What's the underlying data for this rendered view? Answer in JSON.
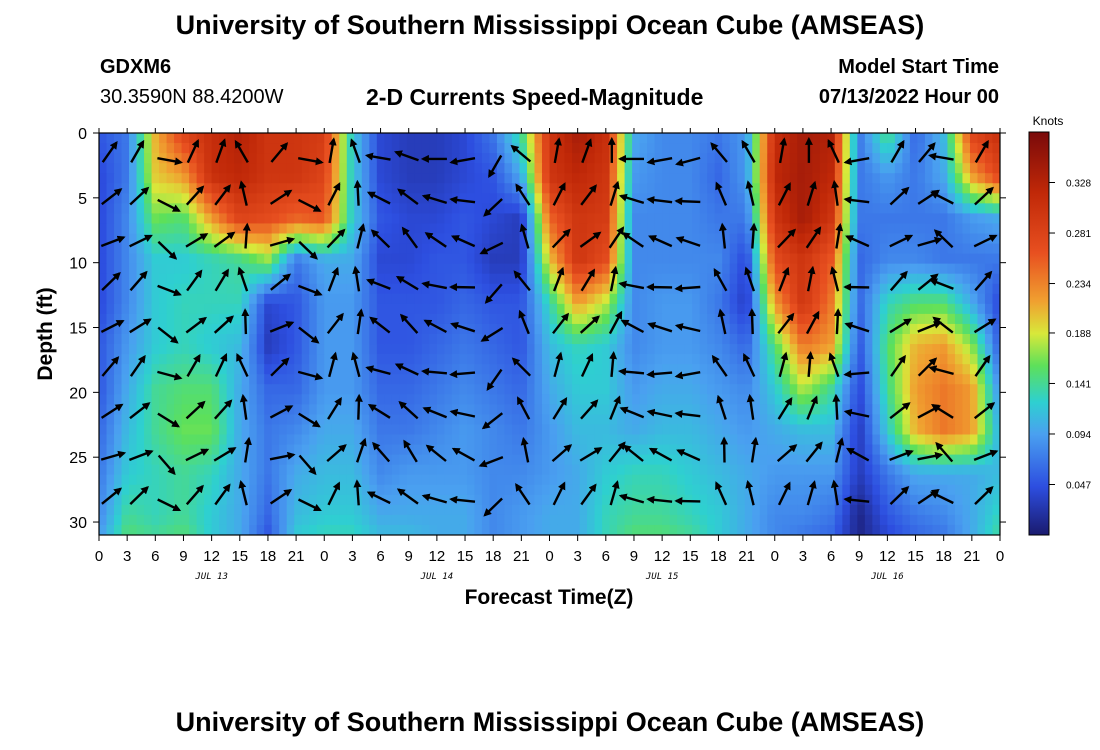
{
  "header": {
    "title": "University of Southern Mississippi Ocean Cube (AMSEAS)",
    "station_id": "GDXM6",
    "station_coords": "30.3590N  88.4200W",
    "plot_title": "2-D Currents Speed-Magnitude",
    "start_label": "Model Start Time",
    "start_value": "07/13/2022 Hour 00"
  },
  "footer": {
    "title": "University of Southern Mississippi Ocean Cube (AMSEAS)"
  },
  "chart_data": {
    "type": "heatmap",
    "title": "2-D Currents Speed-Magnitude",
    "xlabel": "Forecast Time(Z)",
    "ylabel": "Depth (ft)",
    "xlim": [
      0,
      96
    ],
    "ylim": [
      31,
      0
    ],
    "x_tick_labels": [
      "0",
      "3",
      "6",
      "9",
      "12",
      "15",
      "18",
      "21",
      "0",
      "3",
      "6",
      "9",
      "12",
      "15",
      "18",
      "21",
      "0",
      "3",
      "6",
      "9",
      "12",
      "15",
      "18",
      "21",
      "0",
      "3",
      "6",
      "9",
      "12",
      "15",
      "18",
      "21",
      "0"
    ],
    "y_ticks": [
      0,
      5,
      10,
      15,
      20,
      25,
      30
    ],
    "date_labels": [
      {
        "label": "JUL 13",
        "hour": 12
      },
      {
        "label": "JUL 14",
        "hour": 36
      },
      {
        "label": "JUL 15",
        "hour": 60
      },
      {
        "label": "JUL 16",
        "hour": 84
      }
    ],
    "colorbar": {
      "unit": "Knots",
      "range": [
        0.0,
        0.375
      ],
      "ticks": [
        "0.328",
        "0.281",
        "0.234",
        "0.188",
        "0.141",
        "0.094",
        "0.047"
      ],
      "tick_values": [
        0.328,
        0.281,
        0.234,
        0.188,
        0.141,
        0.094,
        0.047
      ]
    },
    "depth_levels_ft": [
      0,
      3.3,
      6.6,
      9.8,
      13.1,
      16.4,
      19.7,
      23.0,
      26.2,
      29.5,
      31.0
    ],
    "hours": [
      0,
      3,
      6,
      9,
      12,
      15,
      18,
      21,
      24,
      27,
      30,
      33,
      36,
      39,
      42,
      45,
      48,
      51,
      54,
      57,
      60,
      63,
      66,
      69,
      72,
      75,
      78,
      81,
      84,
      87,
      90,
      93,
      96
    ],
    "speed_knots": [
      [
        0.05,
        0.07,
        0.21,
        0.28,
        0.31,
        0.33,
        0.3,
        0.3,
        0.29,
        0.12,
        0.04,
        0.03,
        0.03,
        0.04,
        0.07,
        0.14,
        0.3,
        0.34,
        0.31,
        0.1,
        0.08,
        0.08,
        0.07,
        0.09,
        0.31,
        0.34,
        0.33,
        0.07,
        0.15,
        0.06,
        0.11,
        0.28,
        0.31
      ],
      [
        0.04,
        0.07,
        0.2,
        0.22,
        0.31,
        0.32,
        0.3,
        0.3,
        0.28,
        0.12,
        0.04,
        0.03,
        0.03,
        0.04,
        0.05,
        0.1,
        0.3,
        0.32,
        0.3,
        0.09,
        0.08,
        0.08,
        0.06,
        0.09,
        0.32,
        0.34,
        0.32,
        0.07,
        0.09,
        0.07,
        0.1,
        0.22,
        0.28
      ],
      [
        0.04,
        0.08,
        0.16,
        0.15,
        0.22,
        0.28,
        0.27,
        0.25,
        0.26,
        0.12,
        0.05,
        0.04,
        0.04,
        0.05,
        0.04,
        0.03,
        0.25,
        0.3,
        0.29,
        0.08,
        0.08,
        0.08,
        0.07,
        0.07,
        0.3,
        0.34,
        0.3,
        0.07,
        0.07,
        0.07,
        0.07,
        0.09,
        0.1
      ],
      [
        0.04,
        0.08,
        0.12,
        0.12,
        0.13,
        0.14,
        0.17,
        0.07,
        0.1,
        0.1,
        0.04,
        0.04,
        0.05,
        0.05,
        0.03,
        0.03,
        0.2,
        0.3,
        0.27,
        0.08,
        0.08,
        0.08,
        0.08,
        0.04,
        0.27,
        0.3,
        0.26,
        0.06,
        0.08,
        0.08,
        0.07,
        0.07,
        0.07
      ],
      [
        0.04,
        0.08,
        0.12,
        0.13,
        0.13,
        0.13,
        0.04,
        0.05,
        0.09,
        0.09,
        0.05,
        0.05,
        0.05,
        0.06,
        0.05,
        0.05,
        0.13,
        0.22,
        0.18,
        0.08,
        0.09,
        0.09,
        0.07,
        0.03,
        0.22,
        0.3,
        0.24,
        0.06,
        0.13,
        0.15,
        0.15,
        0.1,
        0.04
      ],
      [
        0.05,
        0.09,
        0.12,
        0.13,
        0.12,
        0.11,
        0.03,
        0.05,
        0.09,
        0.09,
        0.05,
        0.05,
        0.06,
        0.07,
        0.06,
        0.05,
        0.11,
        0.13,
        0.12,
        0.08,
        0.09,
        0.09,
        0.08,
        0.06,
        0.15,
        0.24,
        0.22,
        0.05,
        0.15,
        0.21,
        0.22,
        0.17,
        0.05
      ],
      [
        0.05,
        0.1,
        0.14,
        0.15,
        0.15,
        0.1,
        0.06,
        0.06,
        0.09,
        0.09,
        0.06,
        0.06,
        0.07,
        0.08,
        0.07,
        0.06,
        0.1,
        0.12,
        0.12,
        0.09,
        0.1,
        0.1,
        0.09,
        0.08,
        0.12,
        0.18,
        0.14,
        0.04,
        0.14,
        0.22,
        0.24,
        0.22,
        0.08
      ],
      [
        0.06,
        0.11,
        0.14,
        0.16,
        0.16,
        0.1,
        0.07,
        0.08,
        0.1,
        0.1,
        0.07,
        0.07,
        0.08,
        0.09,
        0.08,
        0.07,
        0.09,
        0.11,
        0.11,
        0.1,
        0.11,
        0.11,
        0.1,
        0.09,
        0.1,
        0.11,
        0.11,
        0.03,
        0.12,
        0.21,
        0.24,
        0.22,
        0.1
      ],
      [
        0.07,
        0.12,
        0.13,
        0.14,
        0.13,
        0.1,
        0.07,
        0.1,
        0.11,
        0.11,
        0.08,
        0.09,
        0.09,
        0.09,
        0.08,
        0.08,
        0.09,
        0.1,
        0.12,
        0.13,
        0.13,
        0.12,
        0.11,
        0.1,
        0.09,
        0.09,
        0.09,
        0.03,
        0.07,
        0.1,
        0.1,
        0.1,
        0.11
      ],
      [
        0.08,
        0.14,
        0.13,
        0.14,
        0.12,
        0.1,
        0.06,
        0.11,
        0.12,
        0.12,
        0.1,
        0.1,
        0.1,
        0.1,
        0.08,
        0.09,
        0.1,
        0.1,
        0.13,
        0.14,
        0.14,
        0.13,
        0.12,
        0.1,
        0.08,
        0.08,
        0.07,
        0.01,
        0.05,
        0.07,
        0.08,
        0.1,
        0.13
      ],
      [
        0.09,
        0.15,
        0.14,
        0.15,
        0.12,
        0.1,
        0.05,
        0.12,
        0.13,
        0.13,
        0.11,
        0.11,
        0.1,
        0.1,
        0.08,
        0.09,
        0.1,
        0.1,
        0.13,
        0.15,
        0.15,
        0.14,
        0.12,
        0.1,
        0.08,
        0.07,
        0.06,
        0.01,
        0.04,
        0.06,
        0.07,
        0.1,
        0.14
      ]
    ]
  }
}
